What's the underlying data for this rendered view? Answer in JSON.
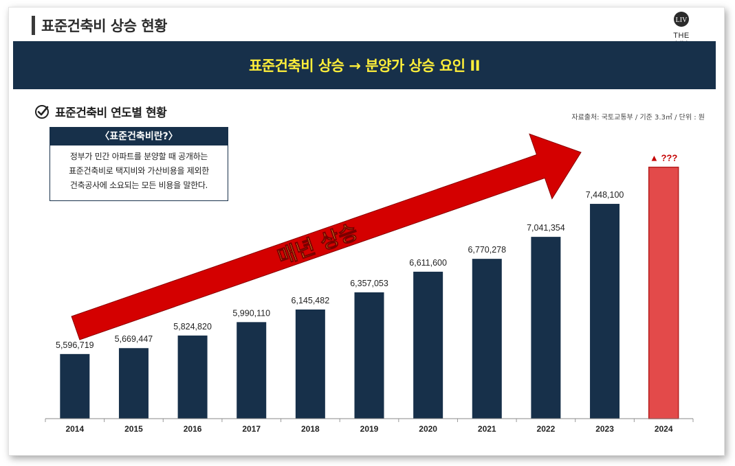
{
  "header": {
    "title": "표준건축비 상승 현황",
    "logo_text": "THE LIV"
  },
  "banner": {
    "text": "표준건축비 상승 → 분양가 상승 요인 II"
  },
  "section": {
    "title": "표준건축비 연도별 현황",
    "source": "자료출처: 국토교통부 / 기준 3.3㎡ / 단위 : 원"
  },
  "definition": {
    "heading": "〈표준건축비란?〉",
    "lines": [
      "정부가 민간 아파트를 분양할 때 공개하는",
      "표준건축비로 택지비와 가산비용을 제외한",
      "건축공사에 소요되는 모든 비용을 말한다."
    ]
  },
  "colors": {
    "banner_bg": "#17304a",
    "banner_text": "#ffef3a",
    "bar": "#17304a",
    "highlight_bar": "#e34a4a",
    "arrow": "#d40000",
    "arrow_text": "#ffef3a"
  },
  "chart_data": {
    "type": "bar",
    "categories": [
      "2014",
      "2015",
      "2016",
      "2017",
      "2018",
      "2019",
      "2020",
      "2021",
      "2022",
      "2023",
      "2024"
    ],
    "values": [
      5596719,
      5669447,
      5824820,
      5990110,
      6145482,
      6357053,
      6611600,
      6770278,
      7041354,
      7448100,
      null
    ],
    "value_labels": [
      "5,596,719",
      "5,669,447",
      "5,824,820",
      "5,990,110",
      "6,145,482",
      "6,357,053",
      "6,611,600",
      "6,770,278",
      "7,041,354",
      "7,448,100",
      "▲ ???"
    ],
    "highlight_category": "2024",
    "highlight_estimate": 7900000,
    "ylim": [
      4800000,
      8100000
    ],
    "grid": false,
    "annotation": "매년 상승"
  }
}
